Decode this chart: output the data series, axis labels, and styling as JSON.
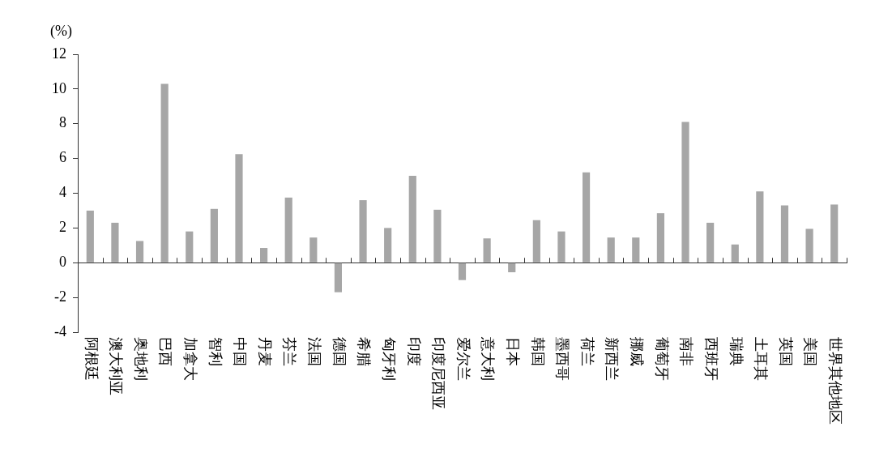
{
  "chart_data": {
    "type": "bar",
    "ylabel": "(%)",
    "categories": [
      "阿根廷",
      "澳大利亚",
      "奥地利",
      "巴西",
      "加拿大",
      "智利",
      "中国",
      "丹麦",
      "芬兰",
      "法国",
      "德国",
      "希腊",
      "匈牙利",
      "印度",
      "印度尼西亚",
      "爱尔兰",
      "意大利",
      "日本",
      "韩国",
      "墨西哥",
      "荷兰",
      "新西兰",
      "挪威",
      "葡萄牙",
      "南非",
      "西班牙",
      "瑞典",
      "土耳其",
      "英国",
      "美国",
      "世界其他地区"
    ],
    "values": [
      3.0,
      2.3,
      1.25,
      10.3,
      1.8,
      3.1,
      6.25,
      0.85,
      3.75,
      1.45,
      -1.7,
      3.6,
      2.0,
      5.0,
      3.05,
      -1.0,
      1.4,
      -0.55,
      2.45,
      1.8,
      5.2,
      1.45,
      1.45,
      2.85,
      8.1,
      2.3,
      1.05,
      4.1,
      3.3,
      1.95,
      3.35
    ],
    "color": "#a6a6a6",
    "ylim": [
      -4,
      12
    ],
    "yticks": [
      -4,
      -2,
      0,
      2,
      4,
      6,
      8,
      10,
      12
    ]
  }
}
